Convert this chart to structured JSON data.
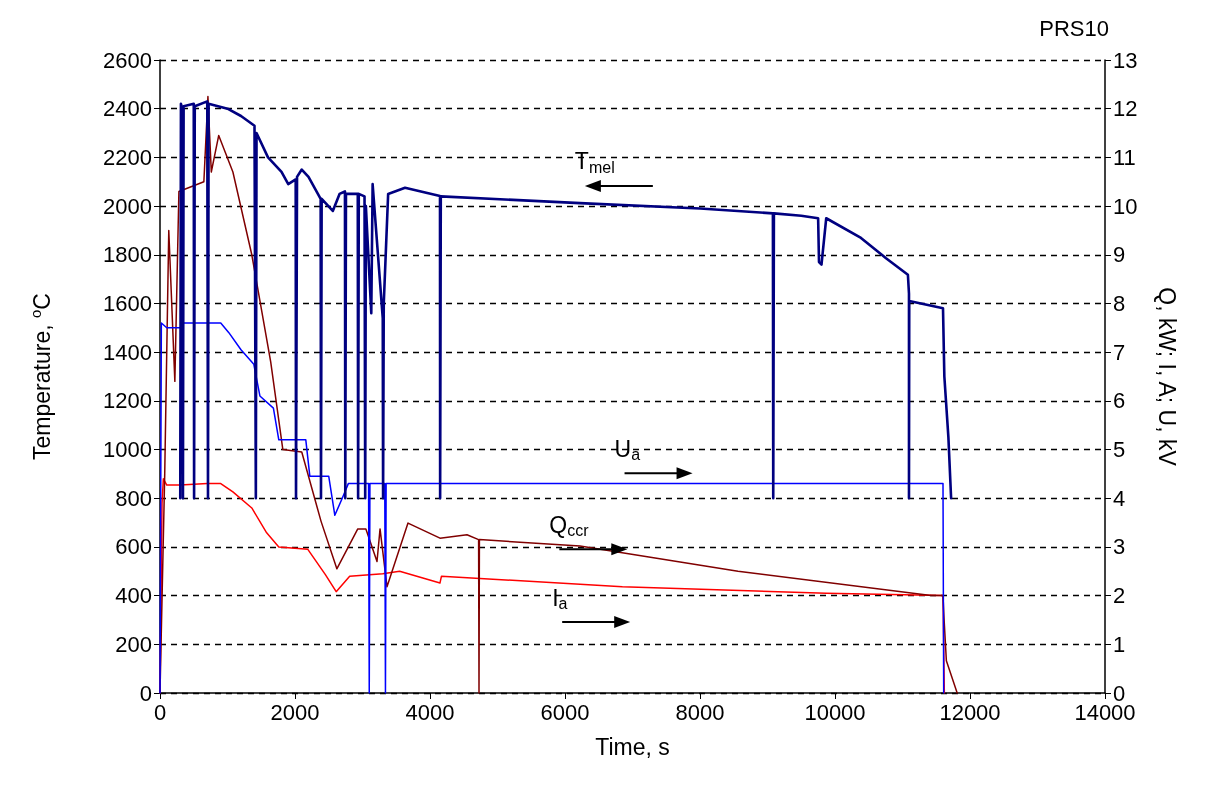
{
  "chart_data": {
    "type": "line",
    "title": "PRS10",
    "xlabel": "Time, s",
    "ylabel": "Temperature, $^{o}$C",
    "y2label": "Q, kW; I, A; U, kV",
    "xlim": [
      0,
      14000
    ],
    "xticks": [
      0,
      2000,
      4000,
      6000,
      8000,
      10000,
      12000,
      14000
    ],
    "ylim": [
      0,
      2600
    ],
    "yticks": [
      0,
      200,
      400,
      600,
      800,
      1000,
      1200,
      1400,
      1600,
      1800,
      2000,
      2200,
      2400,
      2600
    ],
    "y2lim": [
      0,
      13
    ],
    "y2ticks": [
      0,
      1,
      2,
      3,
      4,
      5,
      6,
      7,
      8,
      9,
      10,
      11,
      12,
      13
    ],
    "grid": "y",
    "marker": "none",
    "series": [
      {
        "name": "T$_{mel}$",
        "color": "#000080",
        "axis": "y",
        "x": [
          300,
          310,
          330,
          340,
          350,
          500,
          505,
          515,
          700,
          711,
          720,
          1000,
          1200,
          1400,
          1420,
          1430,
          1600,
          1800,
          1900,
          2010,
          2015,
          2030,
          2100,
          2200,
          2380,
          2385,
          2395,
          2560,
          2660,
          2740,
          2745,
          2755,
          2930,
          2935,
          2945,
          3030,
          3040,
          3050,
          3130,
          3150,
          3300,
          3305,
          3315,
          3380,
          3630,
          4148,
          4150,
          4160,
          6222,
          8000,
          9080,
          9085,
          9095,
          9500,
          9750,
          9763,
          9800,
          9870,
          10385,
          10756,
          11080,
          11096,
          11096,
          11100,
          11600,
          11620,
          11680,
          11720
        ],
        "values": [
          800,
          2420,
          2400,
          800,
          2410,
          2420,
          800,
          2410,
          2430,
          800,
          2420,
          2400,
          2370,
          2330,
          800,
          2300,
          2200,
          2140,
          2090,
          2110,
          800,
          2120,
          2150,
          2120,
          2030,
          800,
          2030,
          1980,
          2050,
          2060,
          800,
          2050,
          2050,
          800,
          2050,
          2040,
          800,
          2000,
          1560,
          2090,
          1540,
          800,
          1600,
          2050,
          2075,
          2041,
          800,
          2040,
          2012,
          1990,
          1970,
          800,
          1970,
          1960,
          1950,
          1770,
          1760,
          1950,
          1869,
          1786,
          1718,
          1640,
          800,
          1610,
          1580,
          1300,
          1050,
          800
        ]
      },
      {
        "name": "U$_{a}$",
        "color": "#0000ff",
        "axis": "y2",
        "x": [
          0,
          20,
          100,
          300,
          350,
          900,
          1020,
          1200,
          1390,
          1480,
          1680,
          1760,
          2160,
          2220,
          2500,
          2590,
          2700,
          2790,
          3090,
          3100,
          3110,
          3330,
          3340,
          3350,
          11600,
          11610
        ],
        "values": [
          0,
          7.6,
          7.5,
          7.5,
          7.6,
          7.6,
          7.4,
          7.05,
          6.75,
          6.1,
          5.85,
          5.2,
          5.2,
          4.45,
          4.45,
          3.65,
          4.0,
          4.3,
          4.3,
          0,
          4.3,
          4.3,
          0,
          4.3,
          4.3,
          0
        ]
      },
      {
        "name": "Q$_{ccr}$",
        "color": "#800000",
        "axis": "y2",
        "x": [
          0,
          70,
          130,
          220,
          280,
          650,
          710,
          760,
          870,
          1080,
          1360,
          1640,
          1820,
          2100,
          2385,
          2620,
          2930,
          3050,
          3215,
          3260,
          3363,
          3674,
          4148,
          4548,
          4720,
          4726,
          4732,
          6222,
          8563,
          11422,
          11600,
          11615,
          11650,
          11810
        ],
        "values": [
          0,
          4.5,
          9.5,
          6.4,
          10.3,
          10.5,
          12.25,
          10.7,
          11.45,
          10.7,
          9.0,
          6.8,
          5.0,
          4.95,
          3.53,
          2.55,
          3.37,
          3.37,
          2.7,
          3.37,
          2.18,
          3.49,
          3.18,
          3.25,
          3.15,
          0,
          3.15,
          3.02,
          2.5,
          2.0,
          2.0,
          1.54,
          0.66,
          0
        ]
      },
      {
        "name": "I$_{a}$",
        "color": "#ff0000",
        "axis": "y2",
        "x": [
          0,
          30,
          50,
          100,
          300,
          700,
          900,
          1080,
          1360,
          1580,
          1760,
          2190,
          2450,
          2610,
          2810,
          3300,
          3550,
          4148,
          4170,
          6850,
          9870,
          11600,
          11620
        ],
        "values": [
          0,
          3.9,
          4.4,
          4.27,
          4.27,
          4.3,
          4.3,
          4.13,
          3.8,
          3.29,
          3.0,
          2.95,
          2.43,
          2.08,
          2.4,
          2.45,
          2.5,
          2.26,
          2.4,
          2.18,
          2.05,
          2.0,
          0
        ]
      }
    ]
  }
}
